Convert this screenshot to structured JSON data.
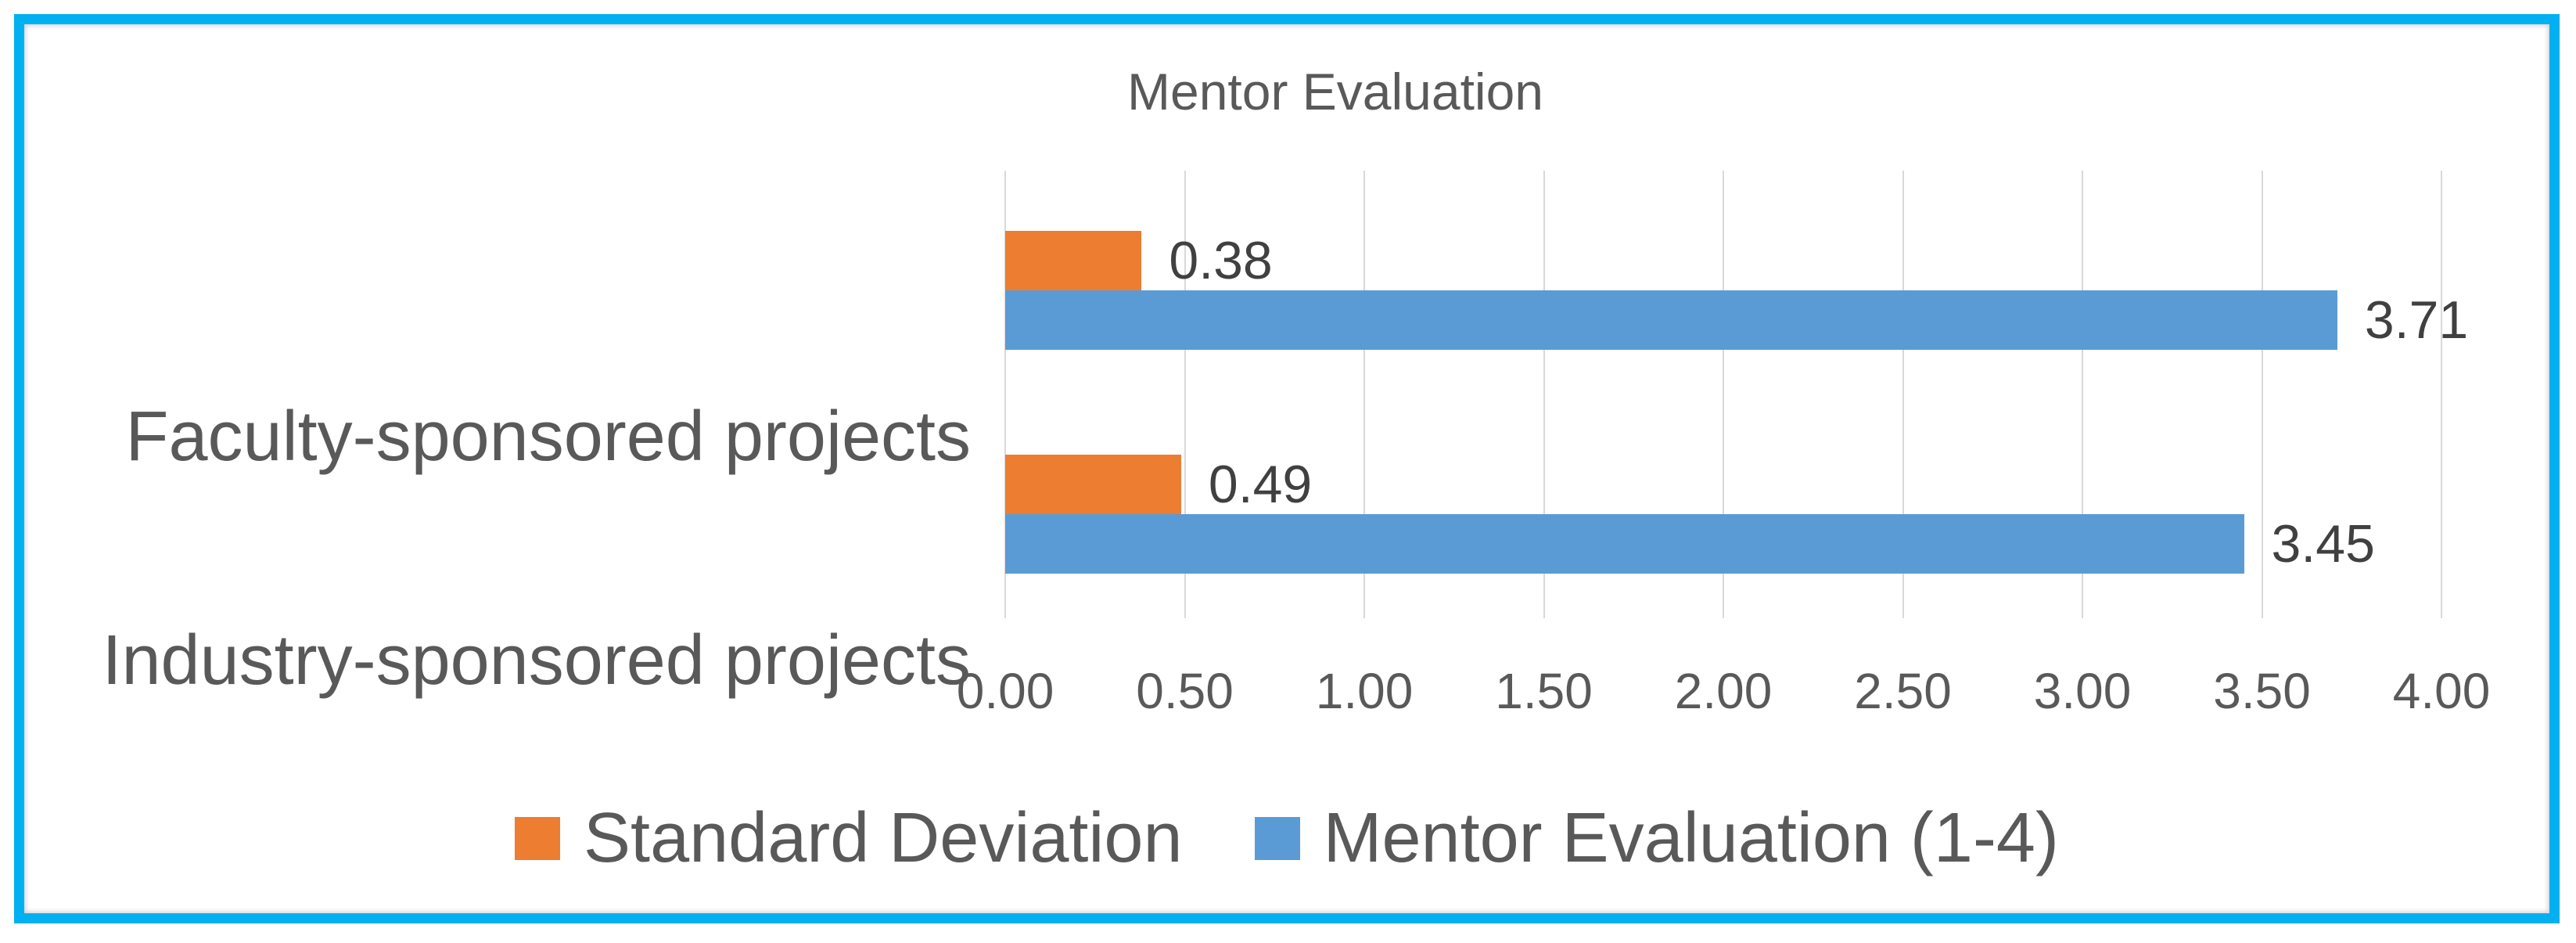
{
  "chart_data": {
    "type": "bar",
    "orientation": "horizontal",
    "title": "Mentor Evaluation",
    "categories": [
      "Faculty-sponsored projects",
      "Industry-sponsored projects"
    ],
    "series": [
      {
        "name": "Standard Deviation",
        "color": "#ED7D31",
        "values": [
          0.38,
          0.49
        ],
        "data_labels": [
          "0.38",
          "0.49"
        ]
      },
      {
        "name": "Mentor Evaluation (1-4)",
        "color": "#5B9BD5",
        "values": [
          3.71,
          3.45
        ],
        "data_labels": [
          "3.71",
          "3.45"
        ]
      }
    ],
    "xlim": [
      0,
      4
    ],
    "xticks": [
      0,
      0.5,
      1,
      1.5,
      2,
      2.5,
      3,
      3.5,
      4
    ],
    "xtick_labels": [
      "0.00",
      "0.50",
      "1.00",
      "1.50",
      "2.00",
      "2.50",
      "3.00",
      "3.50",
      "4.00"
    ],
    "grid": true,
    "legend_position": "bottom",
    "colors": {
      "frame_border": "#00B0F0",
      "gridline": "#D9D9D9",
      "axis_text": "#595959",
      "data_label_text": "#404040",
      "background": "#FFFFFF"
    }
  }
}
